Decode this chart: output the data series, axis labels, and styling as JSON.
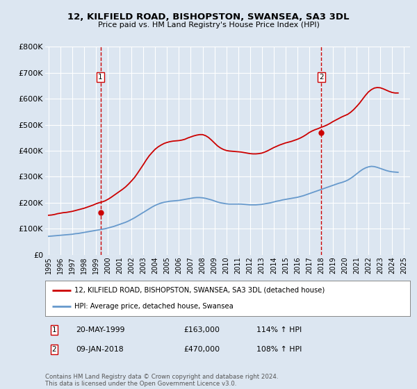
{
  "title": "12, KILFIELD ROAD, BISHOPSTON, SWANSEA, SA3 3DL",
  "subtitle": "Price paid vs. HM Land Registry's House Price Index (HPI)",
  "ylim": [
    0,
    800000
  ],
  "xlim_start": 1994.7,
  "xlim_end": 2025.5,
  "ytick_labels": [
    "£0",
    "£100K",
    "£200K",
    "£300K",
    "£400K",
    "£500K",
    "£600K",
    "£700K",
    "£800K"
  ],
  "ytick_values": [
    0,
    100000,
    200000,
    300000,
    400000,
    500000,
    600000,
    700000,
    800000
  ],
  "background_color": "#dce6f1",
  "plot_bg_color": "#dce6f1",
  "grid_color": "#ffffff",
  "red_line_color": "#cc0000",
  "blue_line_color": "#6699cc",
  "marker_color": "#cc0000",
  "vline_color": "#cc0000",
  "legend_label_red": "12, KILFIELD ROAD, BISHOPSTON, SWANSEA, SA3 3DL (detached house)",
  "legend_label_blue": "HPI: Average price, detached house, Swansea",
  "sale1_x": 1999.38,
  "sale1_y": 163000,
  "sale1_label": "1",
  "sale1_date": "20-MAY-1999",
  "sale1_price": "£163,000",
  "sale1_hpi": "114% ↑ HPI",
  "sale2_x": 2018.03,
  "sale2_y": 470000,
  "sale2_label": "2",
  "sale2_date": "09-JAN-2018",
  "sale2_price": "£470,000",
  "sale2_hpi": "108% ↑ HPI",
  "footer": "Contains HM Land Registry data © Crown copyright and database right 2024.\nThis data is licensed under the Open Government Licence v3.0.",
  "red_x": [
    1995.0,
    1995.25,
    1995.5,
    1995.75,
    1996.0,
    1996.25,
    1996.5,
    1996.75,
    1997.0,
    1997.25,
    1997.5,
    1997.75,
    1998.0,
    1998.25,
    1998.5,
    1998.75,
    1999.0,
    1999.25,
    1999.5,
    1999.75,
    2000.0,
    2000.25,
    2000.5,
    2000.75,
    2001.0,
    2001.25,
    2001.5,
    2001.75,
    2002.0,
    2002.25,
    2002.5,
    2002.75,
    2003.0,
    2003.25,
    2003.5,
    2003.75,
    2004.0,
    2004.25,
    2004.5,
    2004.75,
    2005.0,
    2005.25,
    2005.5,
    2005.75,
    2006.0,
    2006.25,
    2006.5,
    2006.75,
    2007.0,
    2007.25,
    2007.5,
    2007.75,
    2008.0,
    2008.25,
    2008.5,
    2008.75,
    2009.0,
    2009.25,
    2009.5,
    2009.75,
    2010.0,
    2010.25,
    2010.5,
    2010.75,
    2011.0,
    2011.25,
    2011.5,
    2011.75,
    2012.0,
    2012.25,
    2012.5,
    2012.75,
    2013.0,
    2013.25,
    2013.5,
    2013.75,
    2014.0,
    2014.25,
    2014.5,
    2014.75,
    2015.0,
    2015.25,
    2015.5,
    2015.75,
    2016.0,
    2016.25,
    2016.5,
    2016.75,
    2017.0,
    2017.25,
    2017.5,
    2017.75,
    2018.0,
    2018.25,
    2018.5,
    2018.75,
    2019.0,
    2019.25,
    2019.5,
    2019.75,
    2020.0,
    2020.25,
    2020.5,
    2020.75,
    2021.0,
    2021.25,
    2021.5,
    2021.75,
    2022.0,
    2022.25,
    2022.5,
    2022.75,
    2023.0,
    2023.25,
    2023.5,
    2023.75,
    2024.0,
    2024.25,
    2024.5
  ],
  "red_y": [
    152000,
    153000,
    155000,
    158000,
    160000,
    162000,
    163000,
    165000,
    167000,
    170000,
    173000,
    176000,
    179000,
    183000,
    187000,
    191000,
    196000,
    200000,
    203000,
    207000,
    213000,
    220000,
    228000,
    236000,
    244000,
    252000,
    261000,
    272000,
    284000,
    297000,
    313000,
    330000,
    347000,
    365000,
    381000,
    394000,
    406000,
    415000,
    422000,
    428000,
    432000,
    435000,
    437000,
    438000,
    439000,
    441000,
    444000,
    449000,
    453000,
    457000,
    460000,
    462000,
    462000,
    458000,
    451000,
    441000,
    430000,
    419000,
    411000,
    405000,
    401000,
    399000,
    398000,
    397000,
    396000,
    395000,
    393000,
    391000,
    389000,
    388000,
    388000,
    389000,
    391000,
    395000,
    400000,
    406000,
    412000,
    417000,
    422000,
    426000,
    430000,
    433000,
    436000,
    440000,
    444000,
    449000,
    455000,
    462000,
    470000,
    476000,
    481000,
    485000,
    490000,
    494000,
    499000,
    505000,
    512000,
    518000,
    524000,
    530000,
    535000,
    540000,
    548000,
    558000,
    570000,
    583000,
    598000,
    613000,
    626000,
    635000,
    641000,
    643000,
    642000,
    638000,
    633000,
    628000,
    624000,
    622000,
    622000
  ],
  "blue_x": [
    1995.0,
    1995.25,
    1995.5,
    1995.75,
    1996.0,
    1996.25,
    1996.5,
    1996.75,
    1997.0,
    1997.25,
    1997.5,
    1997.75,
    1998.0,
    1998.25,
    1998.5,
    1998.75,
    1999.0,
    1999.25,
    1999.5,
    1999.75,
    2000.0,
    2000.25,
    2000.5,
    2000.75,
    2001.0,
    2001.25,
    2001.5,
    2001.75,
    2002.0,
    2002.25,
    2002.5,
    2002.75,
    2003.0,
    2003.25,
    2003.5,
    2003.75,
    2004.0,
    2004.25,
    2004.5,
    2004.75,
    2005.0,
    2005.25,
    2005.5,
    2005.75,
    2006.0,
    2006.25,
    2006.5,
    2006.75,
    2007.0,
    2007.25,
    2007.5,
    2007.75,
    2008.0,
    2008.25,
    2008.5,
    2008.75,
    2009.0,
    2009.25,
    2009.5,
    2009.75,
    2010.0,
    2010.25,
    2010.5,
    2010.75,
    2011.0,
    2011.25,
    2011.5,
    2011.75,
    2012.0,
    2012.25,
    2012.5,
    2012.75,
    2013.0,
    2013.25,
    2013.5,
    2013.75,
    2014.0,
    2014.25,
    2014.5,
    2014.75,
    2015.0,
    2015.25,
    2015.5,
    2015.75,
    2016.0,
    2016.25,
    2016.5,
    2016.75,
    2017.0,
    2017.25,
    2017.5,
    2017.75,
    2018.0,
    2018.25,
    2018.5,
    2018.75,
    2019.0,
    2019.25,
    2019.5,
    2019.75,
    2020.0,
    2020.25,
    2020.5,
    2020.75,
    2021.0,
    2021.25,
    2021.5,
    2021.75,
    2022.0,
    2022.25,
    2022.5,
    2022.75,
    2023.0,
    2023.25,
    2023.5,
    2023.75,
    2024.0,
    2024.25,
    2024.5
  ],
  "blue_y": [
    71000,
    72000,
    73000,
    74000,
    75000,
    76000,
    77000,
    78000,
    79000,
    81000,
    82000,
    84000,
    86000,
    88000,
    90000,
    92000,
    94000,
    96000,
    98000,
    100000,
    103000,
    106000,
    109000,
    113000,
    117000,
    121000,
    125000,
    130000,
    136000,
    142000,
    149000,
    156000,
    163000,
    170000,
    177000,
    184000,
    190000,
    195000,
    199000,
    202000,
    204000,
    206000,
    207000,
    208000,
    209000,
    211000,
    213000,
    215000,
    217000,
    219000,
    220000,
    220000,
    219000,
    217000,
    214000,
    211000,
    207000,
    203000,
    200000,
    198000,
    196000,
    195000,
    195000,
    195000,
    195000,
    195000,
    194000,
    193000,
    192000,
    192000,
    192000,
    193000,
    194000,
    196000,
    198000,
    200000,
    203000,
    206000,
    208000,
    211000,
    213000,
    215000,
    217000,
    219000,
    221000,
    224000,
    227000,
    231000,
    235000,
    239000,
    243000,
    247000,
    251000,
    255000,
    259000,
    263000,
    267000,
    271000,
    275000,
    278000,
    282000,
    287000,
    294000,
    302000,
    311000,
    320000,
    328000,
    334000,
    338000,
    340000,
    339000,
    336000,
    332000,
    328000,
    324000,
    321000,
    319000,
    318000,
    317000
  ]
}
